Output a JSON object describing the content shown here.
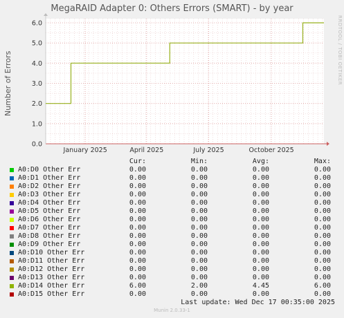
{
  "chart_data": {
    "type": "line",
    "title": "MegaRAID Adapter 0: Others Errors (SMART) - by year",
    "ylabel": "Number of Errors",
    "ylim": [
      0,
      6
    ],
    "yticks": [
      "0.0",
      "1.0",
      "2.0",
      "3.0",
      "4.0",
      "5.0",
      "6.0"
    ],
    "xlim": [
      "2024-11-04",
      "2025-12-17"
    ],
    "xticks": [
      {
        "date": "2025-01-01",
        "label": "January 2025"
      },
      {
        "date": "2025-04-01",
        "label": "April 2025"
      },
      {
        "date": "2025-07-01",
        "label": "July 2025"
      },
      {
        "date": "2025-10-01",
        "label": "October 2025"
      }
    ],
    "series": [
      {
        "name": "A0:D14 Other Err",
        "color": "#98b01c",
        "points": [
          [
            "2024-11-04",
            2
          ],
          [
            "2024-12-11",
            2
          ],
          [
            "2024-12-11",
            4
          ],
          [
            "2025-05-05",
            4
          ],
          [
            "2025-05-05",
            5
          ],
          [
            "2025-11-16",
            5
          ],
          [
            "2025-11-16",
            6
          ],
          [
            "2025-12-17",
            6
          ]
        ]
      }
    ],
    "grid": true,
    "side_text": "RRDTOOL / TOBI OETIKER"
  },
  "legend": {
    "headers": [
      "Cur:",
      "Min:",
      "Avg:",
      "Max:"
    ],
    "rows": [
      {
        "name": "A0:D0 Other Err",
        "color": "#00cc00",
        "cur": "0.00",
        "min": "0.00",
        "avg": "0.00",
        "max": "0.00"
      },
      {
        "name": "A0:D1 Other Err",
        "color": "#0066b3",
        "cur": "0.00",
        "min": "0.00",
        "avg": "0.00",
        "max": "0.00"
      },
      {
        "name": "A0:D2 Other Err",
        "color": "#ff8000",
        "cur": "0.00",
        "min": "0.00",
        "avg": "0.00",
        "max": "0.00"
      },
      {
        "name": "A0:D3 Other Err",
        "color": "#ffcc00",
        "cur": "0.00",
        "min": "0.00",
        "avg": "0.00",
        "max": "0.00"
      },
      {
        "name": "A0:D4 Other Err",
        "color": "#330099",
        "cur": "0.00",
        "min": "0.00",
        "avg": "0.00",
        "max": "0.00"
      },
      {
        "name": "A0:D5 Other Err",
        "color": "#990099",
        "cur": "0.00",
        "min": "0.00",
        "avg": "0.00",
        "max": "0.00"
      },
      {
        "name": "A0:D6 Other Err",
        "color": "#ccff00",
        "cur": "0.00",
        "min": "0.00",
        "avg": "0.00",
        "max": "0.00"
      },
      {
        "name": "A0:D7 Other Err",
        "color": "#ff0000",
        "cur": "0.00",
        "min": "0.00",
        "avg": "0.00",
        "max": "0.00"
      },
      {
        "name": "A0:D8 Other Err",
        "color": "#808080",
        "cur": "0.00",
        "min": "0.00",
        "avg": "0.00",
        "max": "0.00"
      },
      {
        "name": "A0:D9 Other Err",
        "color": "#008f00",
        "cur": "0.00",
        "min": "0.00",
        "avg": "0.00",
        "max": "0.00"
      },
      {
        "name": "A0:D10 Other Err",
        "color": "#00487d",
        "cur": "0.00",
        "min": "0.00",
        "avg": "0.00",
        "max": "0.00"
      },
      {
        "name": "A0:D11 Other Err",
        "color": "#b35a00",
        "cur": "0.00",
        "min": "0.00",
        "avg": "0.00",
        "max": "0.00"
      },
      {
        "name": "A0:D12 Other Err",
        "color": "#b38f00",
        "cur": "0.00",
        "min": "0.00",
        "avg": "0.00",
        "max": "0.00"
      },
      {
        "name": "A0:D13 Other Err",
        "color": "#6b006b",
        "cur": "0.00",
        "min": "0.00",
        "avg": "0.00",
        "max": "0.00"
      },
      {
        "name": "A0:D14 Other Err",
        "color": "#8fb300",
        "cur": "6.00",
        "min": "2.00",
        "avg": "4.45",
        "max": "6.00"
      },
      {
        "name": "A0:D15 Other Err",
        "color": "#b30000",
        "cur": "0.00",
        "min": "0.00",
        "avg": "0.00",
        "max": "0.00"
      }
    ]
  },
  "footer": {
    "last_update": "Last update: Wed Dec 17 00:35:00 2025",
    "munin": "Munin 2.0.33-1"
  }
}
